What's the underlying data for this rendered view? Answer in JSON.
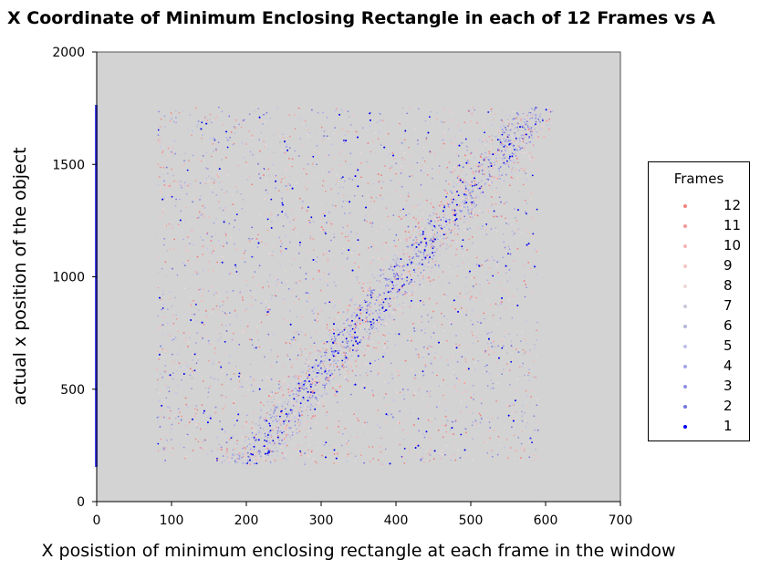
{
  "chart_data": {
    "type": "scatter",
    "title": "X Coordinate of Minimum Enclosing Rectangle in each of 12 Frames vs A",
    "xlabel": "X posistion of minimum enclosing rectangle at each frame in the window",
    "ylabel": "actual x position of the object",
    "xlim": [
      0,
      700
    ],
    "ylim": [
      0,
      2000
    ],
    "xticks": [
      0,
      100,
      200,
      300,
      400,
      500,
      600,
      700
    ],
    "yticks": [
      0,
      500,
      1000,
      1500,
      2000
    ],
    "grid": false,
    "plot_background": "#d3d3d3",
    "legend": {
      "title": "Frames",
      "placement": "right",
      "entries": [
        {
          "label": "12",
          "color": "#f08080"
        },
        {
          "label": "11",
          "color": "#f29a9a"
        },
        {
          "label": "10",
          "color": "#f5b5b5"
        },
        {
          "label": "9",
          "color": "#f4c6c6"
        },
        {
          "label": "8",
          "color": "#f0d8d8"
        },
        {
          "label": "7",
          "color": "#c9c9dc"
        },
        {
          "label": "6",
          "color": "#b8b8d8"
        },
        {
          "label": "5",
          "color": "#c0c0ee"
        },
        {
          "label": "4",
          "color": "#a6a6ea"
        },
        {
          "label": "3",
          "color": "#8f8fe4"
        },
        {
          "label": "2",
          "color": "#7474e0"
        },
        {
          "label": "1",
          "color": "#0000ee"
        }
      ]
    },
    "data_summary": {
      "x_range": [
        80,
        610
      ],
      "y_range": [
        165,
        1755
      ],
      "trend": "dense diagonal band from about (200, 170) to (590, 1750)"
    }
  }
}
